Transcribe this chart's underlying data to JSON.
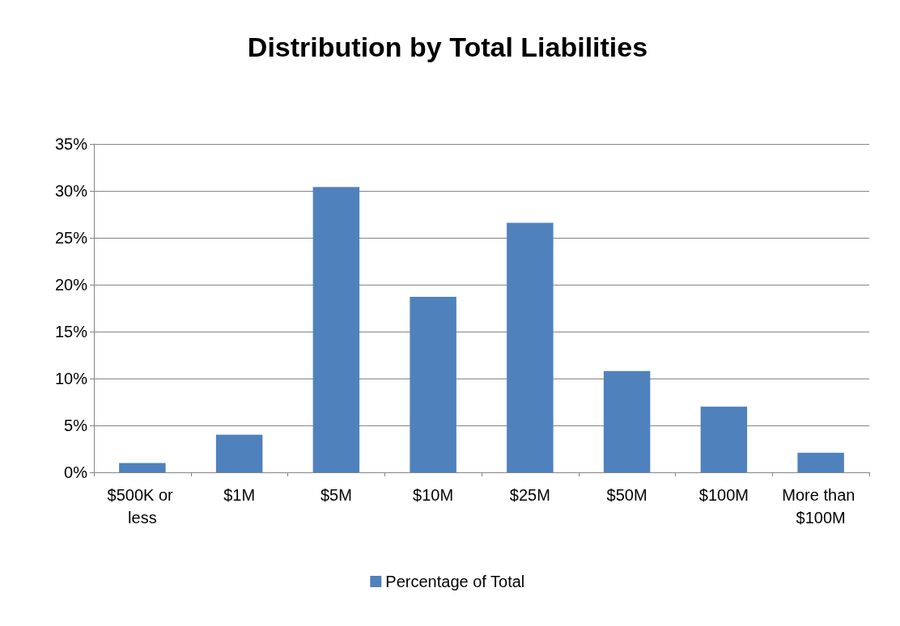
{
  "chart_data": {
    "type": "bar",
    "title": "Distribution by Total Liabilities",
    "categories": [
      "$500K or less",
      "$1M",
      "$5M",
      "$10M",
      "$25M",
      "$50M",
      "$100M",
      "More than $100M"
    ],
    "series": [
      {
        "name": "Percentage of Total",
        "color": "#4f81bd",
        "values": [
          1.0,
          4.0,
          30.4,
          18.7,
          26.6,
          10.8,
          7.0,
          2.1
        ]
      }
    ],
    "ylim": [
      0,
      35
    ],
    "yticks": [
      {
        "value": 0,
        "label": "0%"
      },
      {
        "value": 5,
        "label": "5%"
      },
      {
        "value": 10,
        "label": "10%"
      },
      {
        "value": 15,
        "label": "15%"
      },
      {
        "value": 20,
        "label": "20%"
      },
      {
        "value": 25,
        "label": "25%"
      },
      {
        "value": 30,
        "label": "30%"
      },
      {
        "value": 35,
        "label": "35%"
      }
    ],
    "grid": "y",
    "legend": "bottom"
  }
}
